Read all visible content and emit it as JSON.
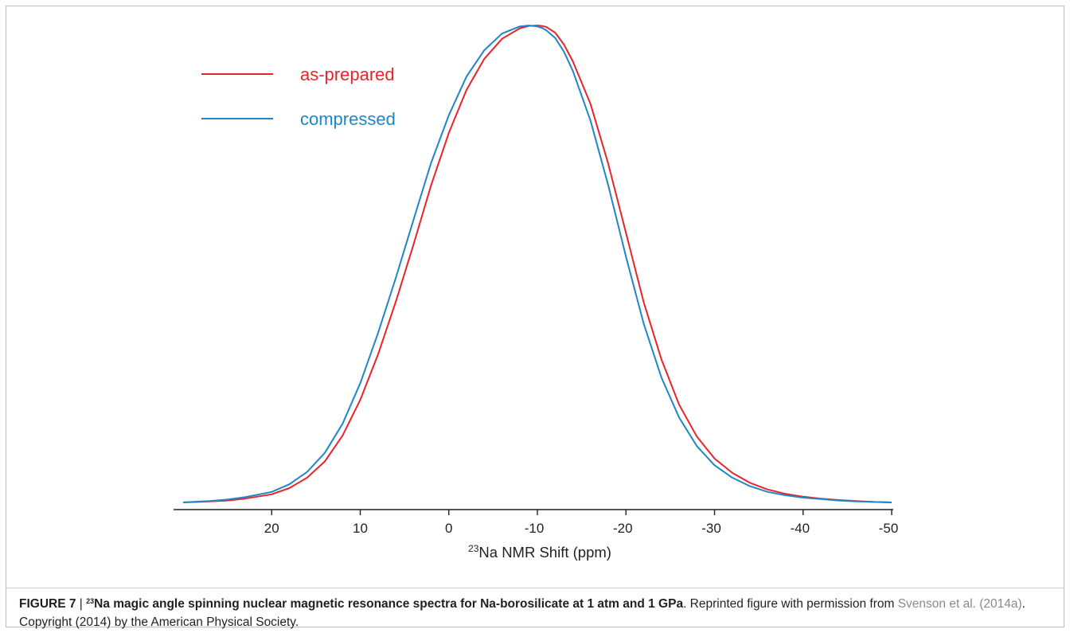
{
  "caption": {
    "label": "FIGURE 7",
    "separator": " | ",
    "superscript": "23",
    "title": "Na magic angle spinning nuclear magnetic resonance spectra for Na-borosilicate at 1 atm and 1 GPa",
    "text_before_link": ". Reprinted figure with permission from ",
    "link_text": "Svenson et al. (2014a)",
    "text_after_link": ". Copyright (2014) by the American Physical Society."
  },
  "colors": {
    "as_prepared": "#e8242b",
    "compressed": "#1f86c7",
    "axis": "#231f20"
  },
  "chart_data": {
    "type": "line",
    "title": "",
    "xlabel_superscript": "23",
    "xlabel": "Na NMR Shift (ppm)",
    "ylabel": "",
    "xlim": [
      30,
      -50
    ],
    "x_reversed": true,
    "ylim": [
      0,
      1
    ],
    "yaxis_visible": false,
    "grid": false,
    "legend_position": "top-left",
    "x_ticks": [
      20,
      10,
      0,
      -10,
      -20,
      -30,
      -40,
      -50
    ],
    "x_tick_labels": [
      "20",
      "10",
      "0",
      "-10",
      "-20",
      "-30",
      "-40",
      "-50"
    ],
    "series": [
      {
        "name": "as-prepared",
        "color": "#e8242b",
        "x": [
          30,
          27,
          25,
          23,
          20,
          18,
          16,
          14,
          12,
          10,
          8,
          6,
          4,
          2,
          0,
          -2,
          -4,
          -6,
          -8,
          -9,
          -10,
          -10.5,
          -11,
          -12,
          -13,
          -14,
          -16,
          -18,
          -20,
          -22,
          -24,
          -26,
          -28,
          -30,
          -32,
          -34,
          -36,
          -38,
          -40,
          -42,
          -44,
          -46,
          -48,
          -50
        ],
        "y": [
          0.0,
          0.002,
          0.004,
          0.008,
          0.017,
          0.03,
          0.052,
          0.086,
          0.14,
          0.215,
          0.31,
          0.42,
          0.54,
          0.665,
          0.775,
          0.865,
          0.93,
          0.972,
          0.994,
          0.999,
          1.0,
          0.999,
          0.997,
          0.985,
          0.96,
          0.925,
          0.835,
          0.71,
          0.565,
          0.42,
          0.3,
          0.205,
          0.138,
          0.092,
          0.062,
          0.041,
          0.027,
          0.018,
          0.012,
          0.008,
          0.005,
          0.003,
          0.001,
          0.0
        ]
      },
      {
        "name": "compressed",
        "color": "#1f86c7",
        "x": [
          30,
          27,
          25,
          23,
          20,
          18,
          16,
          14,
          12,
          10,
          8,
          6,
          4,
          2,
          0,
          -2,
          -4,
          -6,
          -8,
          -9,
          -10,
          -10.5,
          -11,
          -12,
          -13,
          -14,
          -16,
          -18,
          -20,
          -22,
          -24,
          -26,
          -28,
          -30,
          -32,
          -34,
          -36,
          -38,
          -40,
          -42,
          -44,
          -46,
          -48,
          -50
        ],
        "y": [
          0.0,
          0.003,
          0.006,
          0.011,
          0.022,
          0.038,
          0.064,
          0.104,
          0.165,
          0.25,
          0.355,
          0.47,
          0.592,
          0.712,
          0.812,
          0.893,
          0.948,
          0.983,
          0.998,
          1.0,
          0.998,
          0.995,
          0.99,
          0.974,
          0.945,
          0.905,
          0.8,
          0.665,
          0.515,
          0.375,
          0.262,
          0.178,
          0.118,
          0.078,
          0.052,
          0.034,
          0.022,
          0.015,
          0.01,
          0.007,
          0.004,
          0.002,
          0.001,
          0.0
        ]
      }
    ]
  }
}
